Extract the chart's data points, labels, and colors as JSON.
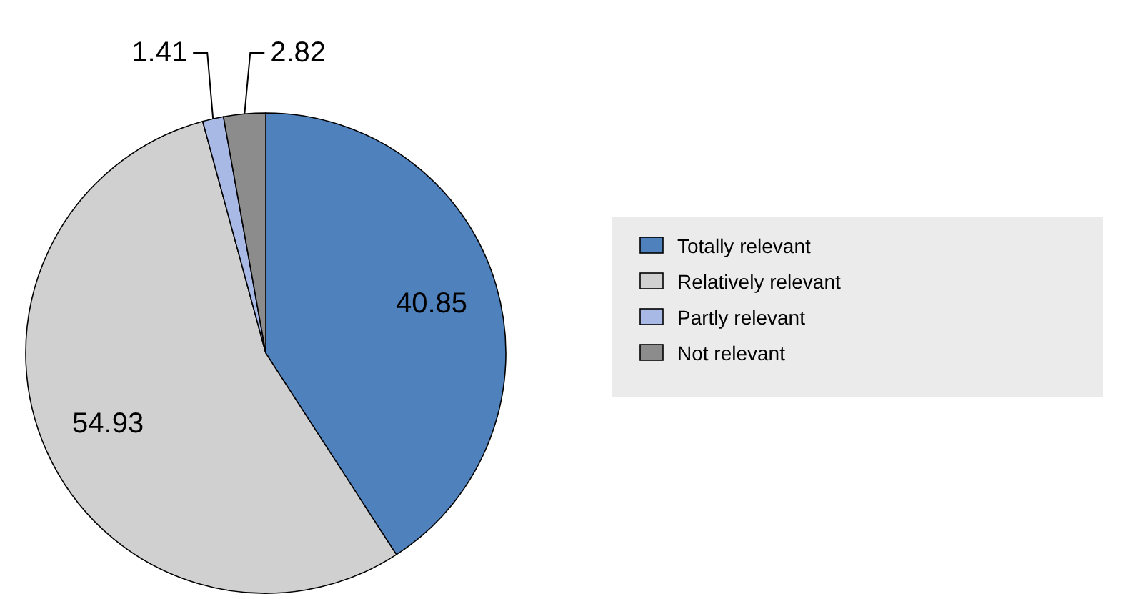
{
  "chart_data": {
    "type": "pie",
    "categories": [
      "Totally relevant",
      "Relatively relevant",
      "Partly relevant",
      "Not relevant"
    ],
    "values": [
      40.85,
      54.93,
      1.41,
      2.82
    ],
    "colors": [
      "#4f81bd",
      "#d0d0d0",
      "#a9b9e6",
      "#8c8c8c"
    ],
    "data_labels": true,
    "legend": "right"
  }
}
